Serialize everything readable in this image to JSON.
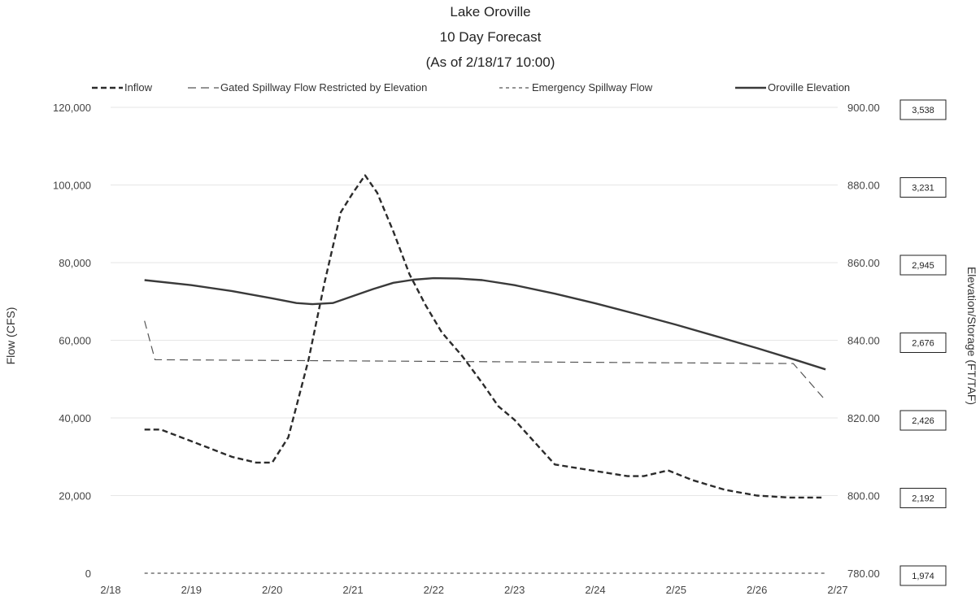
{
  "chart_data": {
    "type": "line",
    "title": [
      "Lake Oroville",
      "10 Day Forecast",
      "(As of 2/18/17 10:00)"
    ],
    "ylabel": "Flow (CFS)",
    "y2label": "Elevation/Storage (FT/TAF)",
    "x_labels": [
      "2/18",
      "2/19",
      "2/20",
      "2/21",
      "2/22",
      "2/23",
      "2/24",
      "2/25",
      "2/26",
      "2/27"
    ],
    "xlim": [
      0,
      9
    ],
    "ylim": [
      0,
      120000
    ],
    "y_ticks": [
      0,
      20000,
      40000,
      60000,
      80000,
      100000,
      120000
    ],
    "y_tick_labels": [
      "0",
      "20,000",
      "40,000",
      "60,000",
      "80,000",
      "100,000",
      "120,000"
    ],
    "y2lim": [
      780,
      900
    ],
    "y2_ticks": [
      780,
      800,
      820,
      840,
      860,
      880,
      900
    ],
    "y2_tick_labels": [
      "780.00",
      "800.00",
      "820.00",
      "840.00",
      "860.00",
      "880.00",
      "900.00"
    ],
    "storage_labels": [
      "1,974",
      "2,192",
      "2,426",
      "2,676",
      "2,945",
      "3,231",
      "3,538"
    ],
    "grid": true,
    "legend_position": "top",
    "series": [
      {
        "name": "Inflow",
        "axis": "left",
        "style": "dashed",
        "x": [
          0.42,
          0.62,
          1.0,
          1.5,
          1.8,
          2.0,
          2.2,
          2.45,
          2.65,
          2.85,
          3.0,
          3.15,
          3.3,
          3.5,
          3.7,
          3.9,
          4.1,
          4.35,
          4.6,
          4.8,
          5.0,
          5.15,
          5.5,
          5.8,
          6.1,
          6.4,
          6.6,
          6.9,
          7.2,
          7.6,
          8.0,
          8.4,
          8.8
        ],
        "y": [
          37000,
          37000,
          34000,
          30000,
          28500,
          28500,
          35000,
          55000,
          75000,
          93000,
          98000,
          102500,
          98000,
          88000,
          77000,
          69000,
          62000,
          56000,
          49000,
          43000,
          39500,
          36000,
          28000,
          27000,
          26000,
          25000,
          25000,
          26500,
          24000,
          21500,
          20000,
          19500,
          19500
        ]
      },
      {
        "name": "Gated Spillway Flow Restricted by Elevation",
        "axis": "left",
        "style": "long-dashed",
        "x": [
          0.42,
          0.55,
          8.45,
          8.85
        ],
        "y": [
          65000,
          55000,
          54000,
          44500
        ]
      },
      {
        "name": "Emergency Spillway Flow",
        "axis": "left",
        "style": "short-dashed",
        "x": [
          0.42,
          8.85
        ],
        "y": [
          0,
          0
        ]
      },
      {
        "name": "Oroville Elevation",
        "axis": "right",
        "style": "solid",
        "x": [
          0.42,
          1.0,
          1.5,
          2.0,
          2.3,
          2.5,
          2.75,
          3.0,
          3.25,
          3.5,
          3.75,
          4.0,
          4.3,
          4.6,
          5.0,
          5.5,
          6.0,
          6.5,
          7.0,
          7.5,
          8.0,
          8.5,
          8.85
        ],
        "y": [
          855.5,
          854.2,
          852.7,
          850.8,
          849.6,
          849.3,
          849.6,
          851.4,
          853.2,
          854.8,
          855.6,
          856.0,
          855.9,
          855.5,
          854.2,
          852.0,
          849.5,
          846.8,
          844.0,
          841.0,
          838.0,
          834.8,
          832.5
        ]
      }
    ]
  }
}
